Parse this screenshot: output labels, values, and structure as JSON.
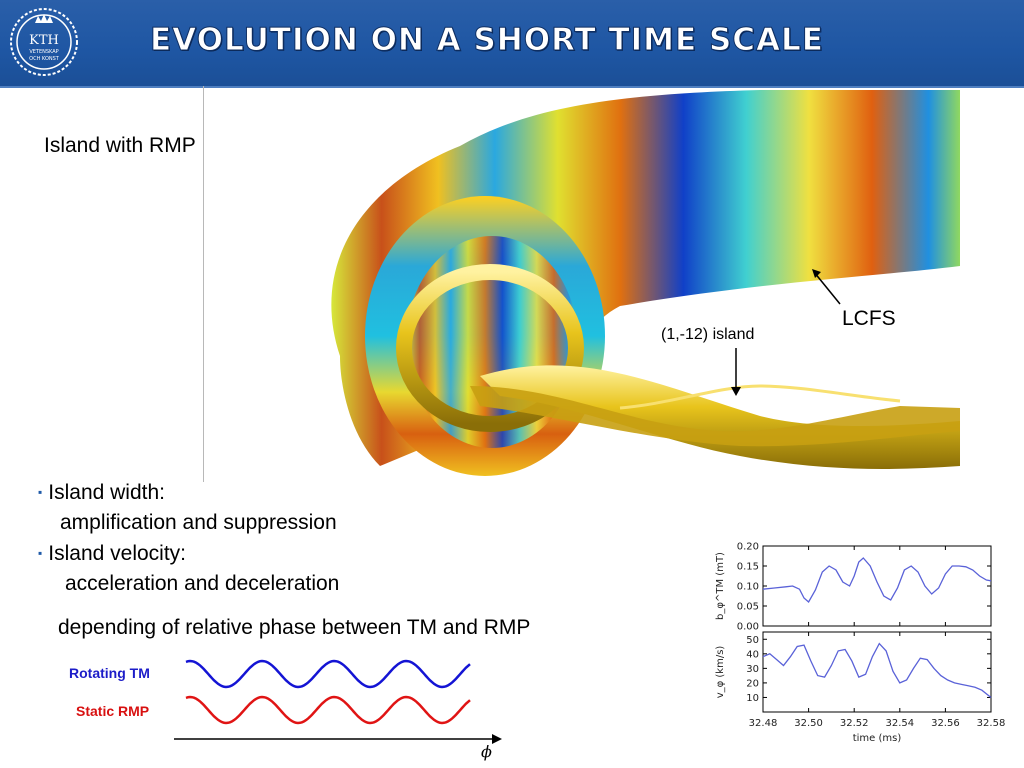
{
  "header": {
    "title": "EVOLUTION ON A SHORT TIME SCALE",
    "logo_text": "KTH",
    "logo_subtext_1": "VETENSKAP",
    "logo_subtext_2": "OCH KONST"
  },
  "figure": {
    "caption": "Island with RMP",
    "lcfs_label": "LCFS",
    "island_label": "(1,-12) island"
  },
  "bullets": [
    {
      "marker": "▪",
      "heading": "Island width:",
      "detail": "amplification and suppression"
    },
    {
      "marker": "▪",
      "heading": "Island velocity:",
      "detail": "acceleration and deceleration"
    }
  ],
  "note": "depending of relative phase between TM and RMP",
  "waves": {
    "rotating_label": "Rotating TM",
    "static_label": "Static RMP",
    "axis_symbol": "ϕ",
    "rotating_color": "#1414d4",
    "static_color": "#e01414",
    "label_rotating_color": "#1c1cc8",
    "label_static_color": "#d81010"
  },
  "chart_data": [
    {
      "type": "line",
      "ylabel": "b_φ^TM (mT)",
      "xlim": [
        32.48,
        32.58
      ],
      "ylim": [
        0.0,
        0.2
      ],
      "yticks": [
        "0.20",
        "0.15",
        "0.10",
        "0.05",
        "0.00"
      ],
      "series": [
        {
          "color": "#5a62d8",
          "x": [
            32.48,
            32.485,
            32.49,
            32.493,
            32.496,
            32.498,
            32.5,
            32.503,
            32.506,
            32.509,
            32.512,
            32.515,
            32.518,
            32.52,
            32.522,
            32.524,
            32.527,
            32.53,
            32.533,
            32.536,
            32.539,
            32.542,
            32.545,
            32.548,
            32.551,
            32.554,
            32.557,
            32.56,
            32.563,
            32.566,
            32.569,
            32.572,
            32.575,
            32.578,
            32.58
          ],
          "y": [
            0.092,
            0.095,
            0.098,
            0.1,
            0.092,
            0.07,
            0.06,
            0.09,
            0.135,
            0.15,
            0.14,
            0.11,
            0.1,
            0.125,
            0.16,
            0.17,
            0.15,
            0.11,
            0.075,
            0.065,
            0.095,
            0.14,
            0.15,
            0.135,
            0.1,
            0.08,
            0.095,
            0.13,
            0.15,
            0.15,
            0.148,
            0.14,
            0.125,
            0.115,
            0.113
          ]
        }
      ]
    },
    {
      "type": "line",
      "ylabel": "v_φ (km/s)",
      "xlabel": "time (ms)",
      "xlim": [
        32.48,
        32.58
      ],
      "ylim": [
        0,
        55
      ],
      "yticks": [
        "50",
        "40",
        "30",
        "20",
        "10"
      ],
      "xticks": [
        "32.48",
        "32.50",
        "32.52",
        "32.54",
        "32.56",
        "32.58"
      ],
      "series": [
        {
          "color": "#5a62d8",
          "x": [
            32.48,
            32.483,
            32.486,
            32.489,
            32.492,
            32.495,
            32.498,
            32.501,
            32.504,
            32.507,
            32.51,
            32.513,
            32.516,
            32.519,
            32.522,
            32.525,
            32.528,
            32.531,
            32.534,
            32.537,
            32.54,
            32.543,
            32.546,
            32.549,
            32.552,
            32.555,
            32.558,
            32.561,
            32.564,
            32.567,
            32.57,
            32.573,
            32.576,
            32.58
          ],
          "y": [
            38,
            40,
            36,
            32,
            38,
            45,
            46,
            35,
            25,
            24,
            32,
            42,
            43,
            35,
            24,
            26,
            38,
            47,
            42,
            28,
            20,
            22,
            30,
            37,
            36,
            30,
            25,
            22,
            20,
            19,
            18,
            17,
            15,
            10
          ]
        }
      ]
    }
  ]
}
